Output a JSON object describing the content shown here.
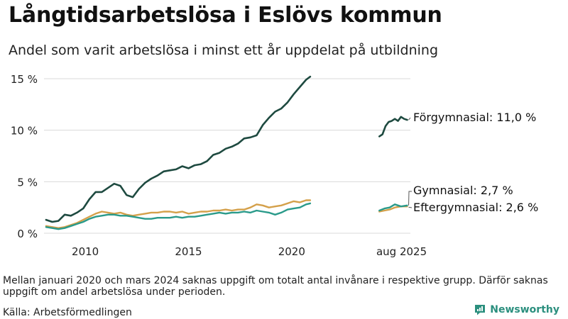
{
  "header": {
    "title": "Långtidsarbetslösa i Eslövs kommun",
    "subtitle": "Andel som varit arbetslösa i minst ett år uppdelat på utbildning"
  },
  "footer": {
    "note": "Mellan januari 2020 och mars 2024 saknas uppgift om totalt antal invånare i respektive grupp. Därför saknas uppgift om andel arbetslösa under perioden.",
    "source": "Källa: Arbetsförmedlingen",
    "brand": "Newsworthy"
  },
  "colors": {
    "forgymnasial": "#1e4a40",
    "gymnasial": "#2a9a8a",
    "eftergymnasial": "#d4a04a",
    "grid": "#d9d9d9",
    "brand": "#2b8f7e"
  },
  "chart_data": {
    "type": "line",
    "title": "Långtidsarbetslösa i Eslövs kommun",
    "subtitle": "Andel som varit arbetslösa i minst ett år uppdelat på utbildning",
    "ylim": [
      0,
      15
    ],
    "y_ticks": [
      {
        "value": 0,
        "label": "0 %"
      },
      {
        "value": 5,
        "label": "5 %"
      },
      {
        "value": 10,
        "label": "10 %"
      },
      {
        "value": 15,
        "label": "15 %"
      }
    ],
    "x_ticks": [
      {
        "value": 2010,
        "label": "2010"
      },
      {
        "value": 2015,
        "label": "2015"
      },
      {
        "value": 2020,
        "label": "2020"
      },
      {
        "value": 2025.6,
        "label": "aug 2025"
      }
    ],
    "grid": true,
    "series": [
      {
        "name": "Förgymnasial",
        "color_key": "forgymnasial",
        "end_label": "Förgymnasial: 11,0 %",
        "segments": [
          [
            [
              2008.1,
              1.3
            ],
            [
              2008.4,
              1.1
            ],
            [
              2008.7,
              1.2
            ],
            [
              2009.0,
              1.8
            ],
            [
              2009.3,
              1.7
            ],
            [
              2009.6,
              2.0
            ],
            [
              2009.9,
              2.4
            ],
            [
              2010.2,
              3.3
            ],
            [
              2010.5,
              4.0
            ],
            [
              2010.8,
              4.0
            ],
            [
              2011.1,
              4.4
            ],
            [
              2011.4,
              4.8
            ],
            [
              2011.7,
              4.6
            ],
            [
              2012.0,
              3.7
            ],
            [
              2012.3,
              3.5
            ],
            [
              2012.6,
              4.3
            ],
            [
              2012.9,
              4.9
            ],
            [
              2013.2,
              5.3
            ],
            [
              2013.5,
              5.6
            ],
            [
              2013.8,
              6.0
            ],
            [
              2014.1,
              6.1
            ],
            [
              2014.4,
              6.2
            ],
            [
              2014.7,
              6.5
            ],
            [
              2015.0,
              6.3
            ],
            [
              2015.3,
              6.6
            ],
            [
              2015.6,
              6.7
            ],
            [
              2015.9,
              7.0
            ],
            [
              2016.2,
              7.6
            ],
            [
              2016.5,
              7.8
            ],
            [
              2016.8,
              8.2
            ],
            [
              2017.1,
              8.4
            ],
            [
              2017.4,
              8.7
            ],
            [
              2017.7,
              9.2
            ],
            [
              2018.0,
              9.3
            ],
            [
              2018.3,
              9.5
            ],
            [
              2018.6,
              10.5
            ],
            [
              2018.9,
              11.2
            ],
            [
              2019.2,
              11.8
            ],
            [
              2019.5,
              12.1
            ],
            [
              2019.8,
              12.7
            ],
            [
              2020.1,
              13.5
            ],
            [
              2020.4,
              14.2
            ],
            [
              2020.7,
              14.9
            ],
            [
              2020.9,
              15.2
            ]
          ],
          [
            [
              2024.25,
              9.4
            ],
            [
              2024.4,
              9.6
            ],
            [
              2024.55,
              10.4
            ],
            [
              2024.7,
              10.8
            ],
            [
              2024.85,
              10.9
            ],
            [
              2025.0,
              11.1
            ],
            [
              2025.15,
              10.9
            ],
            [
              2025.3,
              11.3
            ],
            [
              2025.45,
              11.1
            ],
            [
              2025.6,
              11.0
            ]
          ]
        ]
      },
      {
        "name": "Gymnasial",
        "color_key": "gymnasial",
        "end_label": "Gymnasial:  2,7 %",
        "segments": [
          [
            [
              2008.1,
              0.6
            ],
            [
              2008.4,
              0.5
            ],
            [
              2008.7,
              0.4
            ],
            [
              2009.0,
              0.5
            ],
            [
              2009.3,
              0.7
            ],
            [
              2009.6,
              0.9
            ],
            [
              2009.9,
              1.1
            ],
            [
              2010.2,
              1.4
            ],
            [
              2010.5,
              1.6
            ],
            [
              2010.8,
              1.7
            ],
            [
              2011.1,
              1.8
            ],
            [
              2011.4,
              1.8
            ],
            [
              2011.7,
              1.7
            ],
            [
              2012.0,
              1.7
            ],
            [
              2012.3,
              1.6
            ],
            [
              2012.6,
              1.5
            ],
            [
              2012.9,
              1.4
            ],
            [
              2013.2,
              1.4
            ],
            [
              2013.5,
              1.5
            ],
            [
              2013.8,
              1.5
            ],
            [
              2014.1,
              1.5
            ],
            [
              2014.4,
              1.6
            ],
            [
              2014.7,
              1.5
            ],
            [
              2015.0,
              1.6
            ],
            [
              2015.3,
              1.6
            ],
            [
              2015.6,
              1.7
            ],
            [
              2015.9,
              1.8
            ],
            [
              2016.2,
              1.9
            ],
            [
              2016.5,
              2.0
            ],
            [
              2016.8,
              1.9
            ],
            [
              2017.1,
              2.0
            ],
            [
              2017.4,
              2.0
            ],
            [
              2017.7,
              2.1
            ],
            [
              2018.0,
              2.0
            ],
            [
              2018.3,
              2.2
            ],
            [
              2018.6,
              2.1
            ],
            [
              2018.9,
              2.0
            ],
            [
              2019.2,
              1.8
            ],
            [
              2019.5,
              2.0
            ],
            [
              2019.8,
              2.3
            ],
            [
              2020.1,
              2.4
            ],
            [
              2020.4,
              2.5
            ],
            [
              2020.7,
              2.8
            ],
            [
              2020.9,
              2.9
            ]
          ],
          [
            [
              2024.25,
              2.2
            ],
            [
              2024.5,
              2.4
            ],
            [
              2024.75,
              2.5
            ],
            [
              2025.0,
              2.8
            ],
            [
              2025.3,
              2.6
            ],
            [
              2025.6,
              2.7
            ]
          ]
        ]
      },
      {
        "name": "Eftergymnasial",
        "color_key": "eftergymnasial",
        "end_label": "Eftergymnasial:  2,6 %",
        "segments": [
          [
            [
              2008.1,
              0.7
            ],
            [
              2008.4,
              0.6
            ],
            [
              2008.7,
              0.5
            ],
            [
              2009.0,
              0.6
            ],
            [
              2009.3,
              0.8
            ],
            [
              2009.6,
              1.0
            ],
            [
              2009.9,
              1.3
            ],
            [
              2010.2,
              1.6
            ],
            [
              2010.5,
              1.9
            ],
            [
              2010.8,
              2.1
            ],
            [
              2011.1,
              2.0
            ],
            [
              2011.4,
              1.9
            ],
            [
              2011.7,
              2.0
            ],
            [
              2012.0,
              1.8
            ],
            [
              2012.3,
              1.7
            ],
            [
              2012.6,
              1.8
            ],
            [
              2012.9,
              1.9
            ],
            [
              2013.2,
              2.0
            ],
            [
              2013.5,
              2.0
            ],
            [
              2013.8,
              2.1
            ],
            [
              2014.1,
              2.1
            ],
            [
              2014.4,
              2.0
            ],
            [
              2014.7,
              2.1
            ],
            [
              2015.0,
              1.9
            ],
            [
              2015.3,
              2.0
            ],
            [
              2015.6,
              2.1
            ],
            [
              2015.9,
              2.1
            ],
            [
              2016.2,
              2.2
            ],
            [
              2016.5,
              2.2
            ],
            [
              2016.8,
              2.3
            ],
            [
              2017.1,
              2.2
            ],
            [
              2017.4,
              2.3
            ],
            [
              2017.7,
              2.3
            ],
            [
              2018.0,
              2.5
            ],
            [
              2018.3,
              2.8
            ],
            [
              2018.6,
              2.7
            ],
            [
              2018.9,
              2.5
            ],
            [
              2019.2,
              2.6
            ],
            [
              2019.5,
              2.7
            ],
            [
              2019.8,
              2.9
            ],
            [
              2020.1,
              3.1
            ],
            [
              2020.4,
              3.0
            ],
            [
              2020.7,
              3.2
            ],
            [
              2020.9,
              3.2
            ]
          ],
          [
            [
              2024.25,
              2.1
            ],
            [
              2024.5,
              2.2
            ],
            [
              2024.75,
              2.3
            ],
            [
              2025.0,
              2.5
            ],
            [
              2025.3,
              2.6
            ],
            [
              2025.6,
              2.6
            ]
          ]
        ]
      }
    ]
  }
}
